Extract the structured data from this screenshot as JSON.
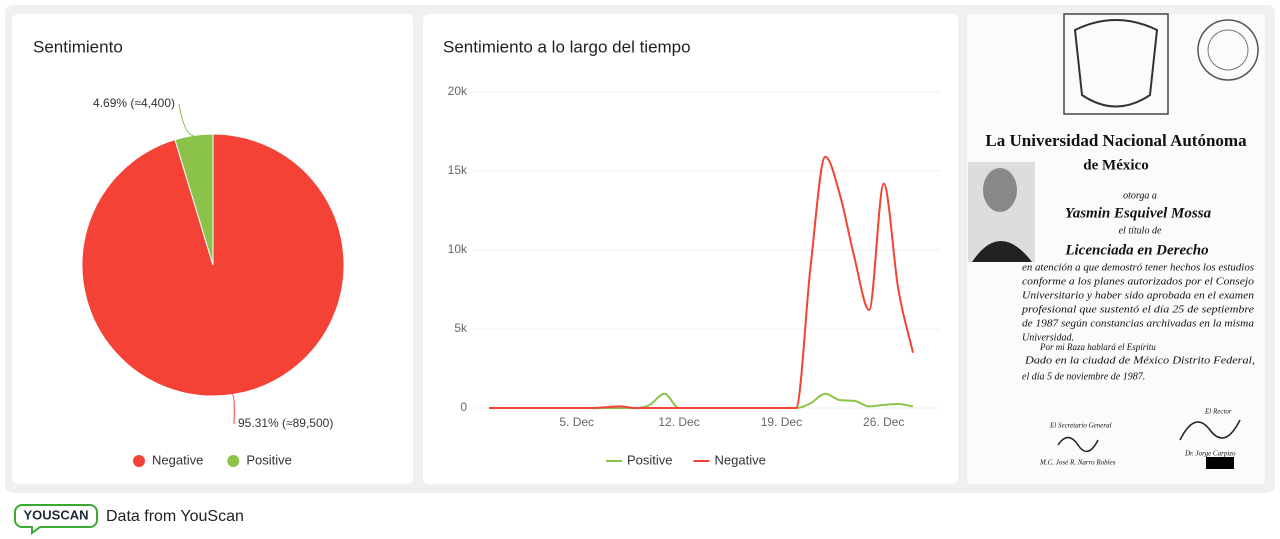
{
  "chart_data": [
    {
      "type": "pie",
      "title": "Sentimiento",
      "categories": [
        "Negative",
        "Positive"
      ],
      "values": [
        95.31,
        4.69
      ],
      "value_labels": [
        "95.31% (≈89,500)",
        "4.69% (≈4,400)"
      ],
      "colors": [
        "#f44336",
        "#8bc34a"
      ]
    },
    {
      "type": "line",
      "title": "Sentimiento a lo largo del tiempo",
      "categories": [
        null,
        null,
        null,
        null,
        null,
        null,
        "5. Dec",
        null,
        null,
        null,
        null,
        null,
        null,
        "12. Dec",
        null,
        null,
        null,
        null,
        null,
        null,
        "19. Dec",
        null,
        null,
        null,
        null,
        null,
        null,
        "26. Dec",
        null,
        null
      ],
      "series": [
        {
          "name": "Positive",
          "color": "#8bc34a",
          "values": [
            0,
            0,
            0,
            0,
            0,
            0,
            0,
            0,
            0,
            0,
            0,
            200,
            900,
            0,
            0,
            0,
            0,
            0,
            0,
            0,
            0,
            0,
            300,
            900,
            500,
            450,
            100,
            200,
            250,
            100
          ]
        },
        {
          "name": "Negative",
          "color": "#f44336",
          "values": [
            0,
            0,
            0,
            0,
            0,
            0,
            0,
            0,
            50,
            100,
            0,
            0,
            0,
            0,
            0,
            0,
            0,
            0,
            0,
            0,
            0,
            0,
            9000,
            15900,
            13500,
            9500,
            6200,
            14200,
            7500,
            3500
          ]
        }
      ],
      "ylim": [
        0,
        20000
      ],
      "yticks": [
        0,
        {
          "value": 5000,
          "label": "5k"
        },
        {
          "value": 10000,
          "label": "10k"
        },
        {
          "value": 15000,
          "label": "15k"
        },
        {
          "value": 20000,
          "label": "20k"
        }
      ],
      "grid": true
    }
  ],
  "document": {
    "heading": [
      "La Universidad Nacional Autónoma",
      "de México"
    ],
    "grant": "otorga a",
    "name": "Yasmin Esquivel Mossa",
    "title_intro": "el título de",
    "degree": "Licenciada en Derecho",
    "body": [
      "en atención a que demostró tener hechos los estudios",
      "conforme a los planes autorizados por el Consejo",
      "Universitario y haber sido aprobada en el examen",
      "profesional que sustentó el día 25 de septiembre",
      "de 1987 según constancias archivadas en la misma",
      "Universidad."
    ],
    "motto": "Por mi Raza hablará el Espíritu",
    "place_date": [
      "Dado en la ciudad de México Distrito Federal,",
      "el día 5 de noviembre de 1987."
    ],
    "signatures": [
      {
        "role": "El Secretario General",
        "name": "M.C. José R. Narro Robles"
      },
      {
        "role": "El Rector",
        "name": "Dr. Jorge Carpizo"
      }
    ]
  },
  "footer": {
    "logo": "YOUSCAN",
    "source": "Data from YouScan"
  }
}
